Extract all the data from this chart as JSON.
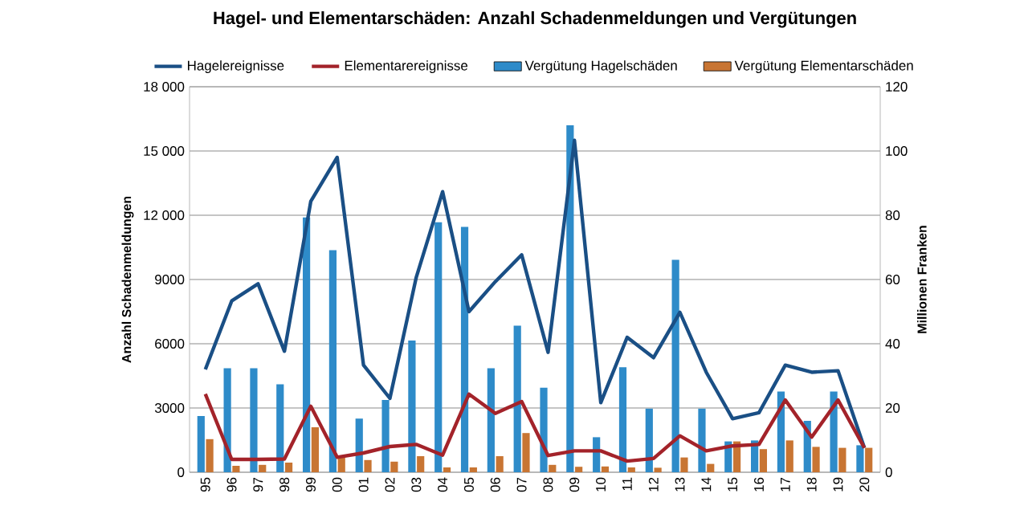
{
  "chart_data": {
    "type": "bar",
    "title": "Hagel- und Elementarschäden: Anzahl Schadenmeldungen und Vergütungen",
    "categories": [
      "95",
      "96",
      "97",
      "98",
      "99",
      "00",
      "01",
      "02",
      "03",
      "04",
      "05",
      "06",
      "07",
      "08",
      "09",
      "10",
      "11",
      "12",
      "13",
      "14",
      "15",
      "16",
      "17",
      "18",
      "19",
      "20"
    ],
    "series": [
      {
        "name": "Hagelereignisse",
        "type": "line",
        "axis": "y",
        "color": "#1a4f85",
        "values": [
          4800,
          8000,
          8800,
          5650,
          12650,
          14700,
          5000,
          3450,
          9100,
          13100,
          7500,
          8900,
          10150,
          5600,
          15500,
          3250,
          6300,
          5350,
          7470,
          4670,
          2500,
          2780,
          5000,
          4670,
          4740,
          1140
        ]
      },
      {
        "name": "Elementarereignisse",
        "type": "line",
        "axis": "y",
        "color": "#a3232a",
        "values": [
          3650,
          600,
          600,
          620,
          3080,
          700,
          900,
          1200,
          1300,
          800,
          3650,
          2750,
          3300,
          780,
          1000,
          1000,
          520,
          640,
          1700,
          1000,
          1230,
          1300,
          3370,
          1640,
          3370,
          1140
        ]
      },
      {
        "name": "Vergütung Hagelschäden",
        "axis": "y2",
        "color": "#2e8bc9",
        "values": [
          17.5,
          32.4,
          32.4,
          27.4,
          79.3,
          69.1,
          16.7,
          22.5,
          41,
          77.8,
          76.4,
          32.4,
          45.6,
          26.3,
          108,
          10.9,
          32.7,
          19.8,
          66.1,
          19.8,
          9.6,
          9.9,
          25.1,
          16,
          25.1,
          8.4
        ]
      },
      {
        "name": "Vergütung Elementarschäden",
        "axis": "y2",
        "color": "#c87533",
        "values": [
          10.3,
          2,
          2.3,
          3,
          14,
          4.6,
          3.8,
          3.3,
          5,
          1.5,
          1.5,
          5,
          12.2,
          2.3,
          1.7,
          1.8,
          1.5,
          1.4,
          4.6,
          2.6,
          9.6,
          7.2,
          9.9,
          7.9,
          7.6,
          7.6
        ]
      }
    ],
    "ylabel": "Anzahl Schadenmeldungen",
    "y2label": "Millionen Franken",
    "ylim": [
      0,
      18000
    ],
    "yticks": [
      0,
      3000,
      6000,
      9000,
      {
        "value": 12000,
        "label": "12 000"
      },
      {
        "value": 15000,
        "label": "15 000"
      },
      {
        "value": 18000,
        "label": "18 000"
      }
    ],
    "y2lim": [
      0,
      120
    ],
    "y2ticks": [
      0,
      20,
      40,
      60,
      80,
      100,
      120
    ],
    "grid": true,
    "legend": "top"
  }
}
